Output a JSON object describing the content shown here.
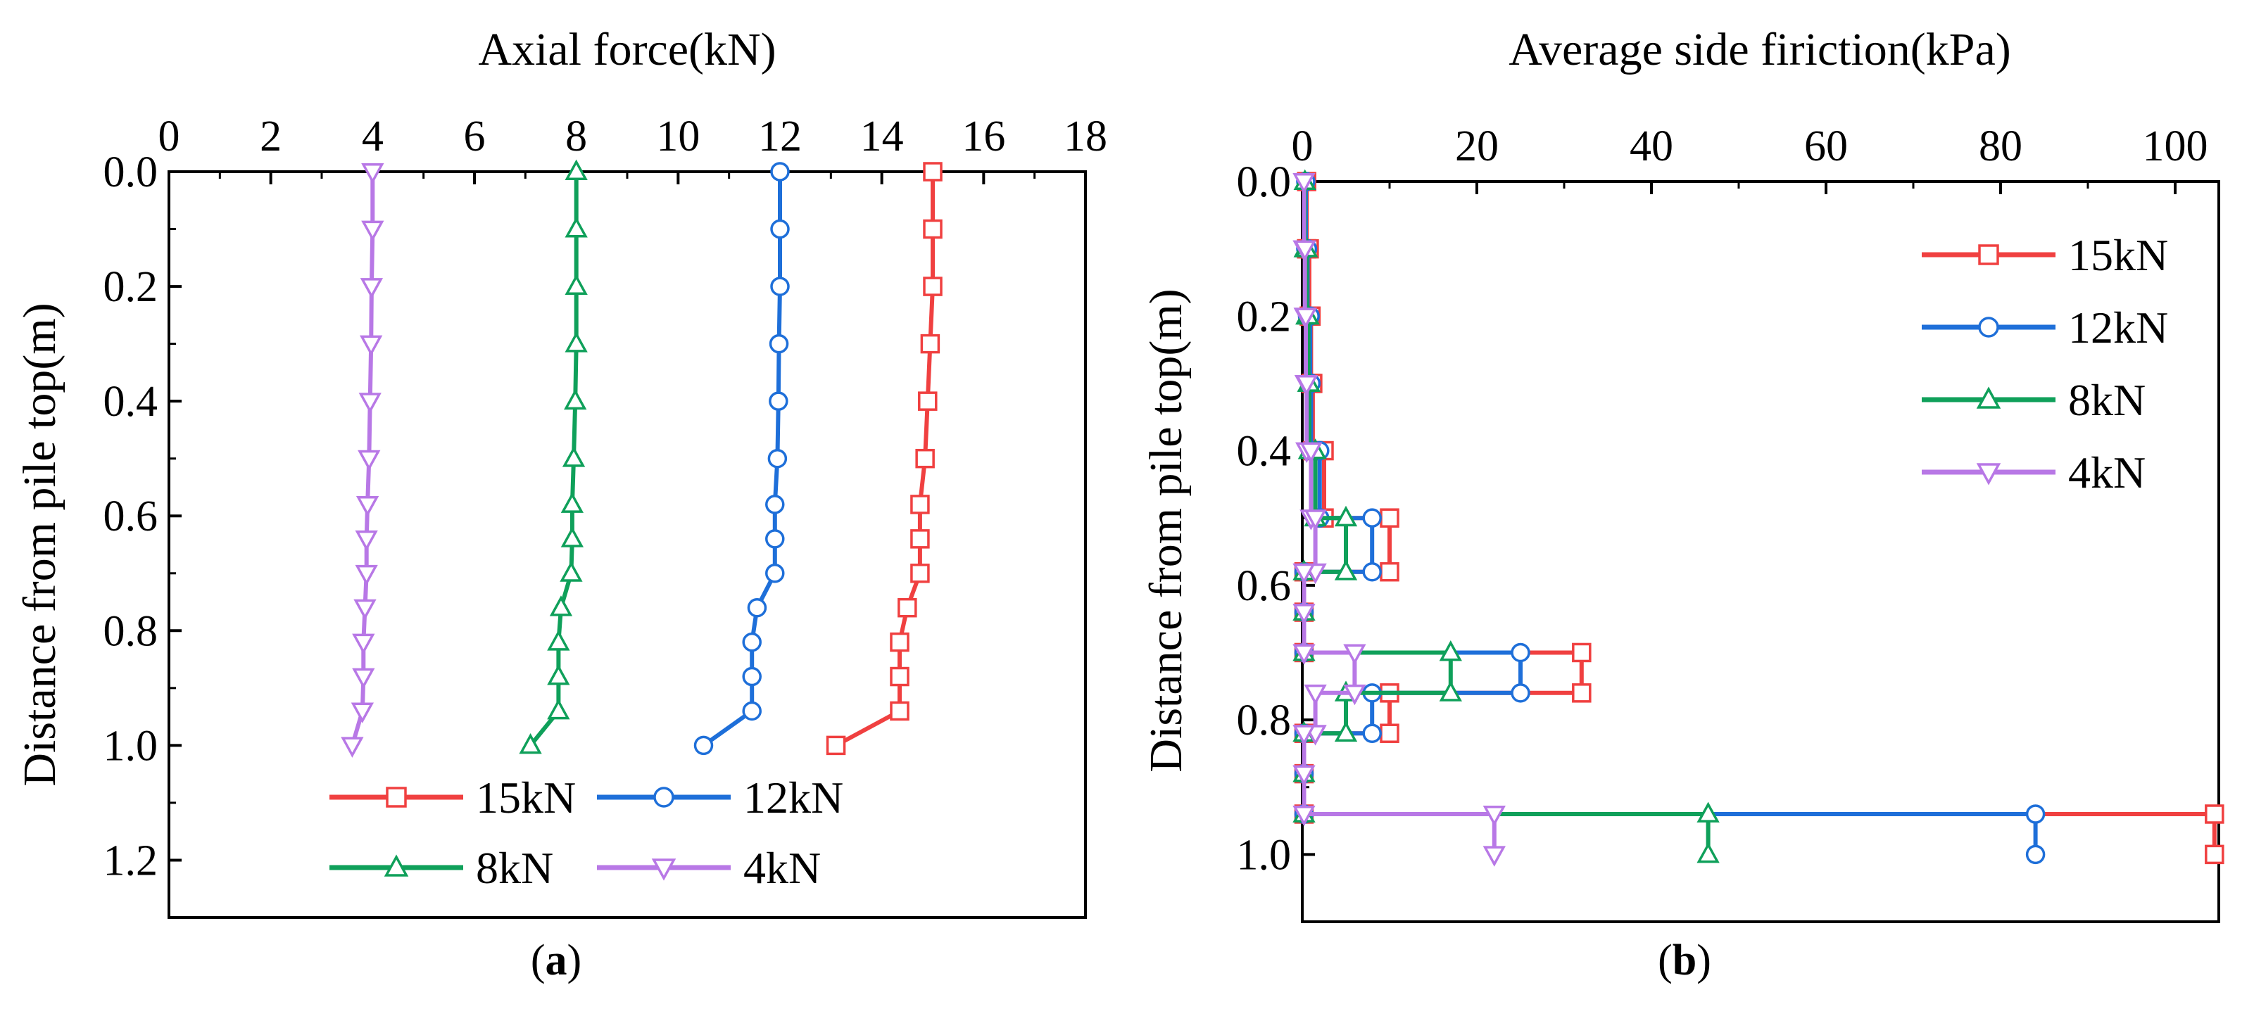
{
  "colors": {
    "15kN": "#f04040",
    "12kN": "#1e6fd9",
    "8kN": "#0fa05a",
    "4kN": "#b878e6"
  },
  "panels": {
    "a": {
      "label_open": "(",
      "label_letter": "a",
      "label_close": ")"
    },
    "b": {
      "label_open": "(",
      "label_letter": "b",
      "label_close": ")"
    }
  },
  "chart_data": [
    {
      "type": "line",
      "xlabel": "Axial force(kN)",
      "ylabel": "Distance from pile top(m)",
      "xlim": [
        0,
        18
      ],
      "ylim": [
        0,
        1.3
      ],
      "y_inverted": true,
      "x_axis_position": "top",
      "x_ticks": [
        0,
        2,
        4,
        6,
        8,
        10,
        12,
        14,
        16,
        18
      ],
      "x_tick_labels": [
        "0",
        "2",
        "4",
        "6",
        "8",
        "10",
        "12",
        "14",
        "16",
        "18"
      ],
      "y_ticks": [
        0,
        0.2,
        0.4,
        0.6,
        0.8,
        1.0,
        1.2
      ],
      "y_tick_labels": [
        "0.0",
        "0.2",
        "0.4",
        "0.6",
        "0.8",
        "1.0",
        "1.2"
      ],
      "grid": false,
      "legend_position": "bottom-center",
      "series": [
        {
          "name": "15kN",
          "marker": "square",
          "points": [
            [
              15.0,
              0.0
            ],
            [
              15.0,
              0.1
            ],
            [
              15.0,
              0.2
            ],
            [
              14.95,
              0.3
            ],
            [
              14.9,
              0.4
            ],
            [
              14.85,
              0.5
            ],
            [
              14.75,
              0.58
            ],
            [
              14.75,
              0.64
            ],
            [
              14.75,
              0.7
            ],
            [
              14.5,
              0.76
            ],
            [
              14.35,
              0.82
            ],
            [
              14.35,
              0.88
            ],
            [
              14.35,
              0.94
            ],
            [
              13.1,
              1.0
            ]
          ]
        },
        {
          "name": "12kN",
          "marker": "circle",
          "points": [
            [
              12.0,
              0.0
            ],
            [
              12.0,
              0.1
            ],
            [
              12.0,
              0.2
            ],
            [
              11.98,
              0.3
            ],
            [
              11.97,
              0.4
            ],
            [
              11.95,
              0.5
            ],
            [
              11.9,
              0.58
            ],
            [
              11.9,
              0.64
            ],
            [
              11.9,
              0.7
            ],
            [
              11.55,
              0.76
            ],
            [
              11.45,
              0.82
            ],
            [
              11.45,
              0.88
            ],
            [
              11.45,
              0.94
            ],
            [
              10.5,
              1.0
            ]
          ]
        },
        {
          "name": "8kN",
          "marker": "triangle-up",
          "points": [
            [
              8.0,
              0.0
            ],
            [
              8.0,
              0.1
            ],
            [
              8.0,
              0.2
            ],
            [
              8.0,
              0.3
            ],
            [
              7.98,
              0.4
            ],
            [
              7.95,
              0.5
            ],
            [
              7.92,
              0.58
            ],
            [
              7.92,
              0.64
            ],
            [
              7.9,
              0.7
            ],
            [
              7.7,
              0.76
            ],
            [
              7.65,
              0.82
            ],
            [
              7.65,
              0.88
            ],
            [
              7.65,
              0.94
            ],
            [
              7.1,
              1.0
            ]
          ]
        },
        {
          "name": "4kN",
          "marker": "triangle-down",
          "points": [
            [
              4.0,
              0.0
            ],
            [
              4.0,
              0.1
            ],
            [
              3.98,
              0.2
            ],
            [
              3.97,
              0.3
            ],
            [
              3.95,
              0.4
            ],
            [
              3.93,
              0.5
            ],
            [
              3.9,
              0.58
            ],
            [
              3.88,
              0.64
            ],
            [
              3.88,
              0.7
            ],
            [
              3.85,
              0.76
            ],
            [
              3.82,
              0.82
            ],
            [
              3.82,
              0.88
            ],
            [
              3.8,
              0.94
            ],
            [
              3.6,
              1.0
            ]
          ]
        }
      ]
    },
    {
      "type": "line",
      "xlabel": "Average side firiction(kPa)",
      "ylabel": "Distance from pile top(m)",
      "xlim": [
        0,
        105
      ],
      "ylim": [
        0,
        1.1
      ],
      "y_inverted": true,
      "x_axis_position": "top",
      "x_ticks": [
        0,
        20,
        40,
        60,
        80,
        100
      ],
      "x_tick_labels": [
        "0",
        "20",
        "40",
        "60",
        "80",
        "100"
      ],
      "y_ticks": [
        0,
        0.2,
        0.4,
        0.6,
        0.8,
        1.0
      ],
      "y_tick_labels": [
        "0.0",
        "0.2",
        "0.4",
        "0.6",
        "0.8",
        "1.0"
      ],
      "grid": false,
      "legend_position": "top-right",
      "series": [
        {
          "name": "15kN",
          "marker": "square",
          "points": [
            [
              0.5,
              0.0
            ],
            [
              0.5,
              0.1
            ],
            [
              0.5,
              0.1
            ],
            [
              0.8,
              0.1
            ],
            [
              0.8,
              0.2
            ],
            [
              1.0,
              0.2
            ],
            [
              1.0,
              0.3
            ],
            [
              1.2,
              0.3
            ],
            [
              1.2,
              0.4
            ],
            [
              2.5,
              0.4
            ],
            [
              2.5,
              0.5
            ],
            [
              10.0,
              0.5
            ],
            [
              10.0,
              0.58
            ],
            [
              0.2,
              0.58
            ],
            [
              0.2,
              0.64
            ],
            [
              0.2,
              0.7
            ],
            [
              32.0,
              0.7
            ],
            [
              32.0,
              0.76
            ],
            [
              10.0,
              0.76
            ],
            [
              10.0,
              0.82
            ],
            [
              0.2,
              0.82
            ],
            [
              0.2,
              0.88
            ],
            [
              0.2,
              0.94
            ],
            [
              104.5,
              0.94
            ],
            [
              104.5,
              1.0
            ]
          ]
        },
        {
          "name": "12kN",
          "marker": "circle",
          "points": [
            [
              0.4,
              0.0
            ],
            [
              0.4,
              0.1
            ],
            [
              0.6,
              0.1
            ],
            [
              0.6,
              0.2
            ],
            [
              0.9,
              0.2
            ],
            [
              0.9,
              0.3
            ],
            [
              1.0,
              0.3
            ],
            [
              1.0,
              0.4
            ],
            [
              2.0,
              0.4
            ],
            [
              2.0,
              0.5
            ],
            [
              8.0,
              0.5
            ],
            [
              8.0,
              0.58
            ],
            [
              0.2,
              0.58
            ],
            [
              0.2,
              0.64
            ],
            [
              0.2,
              0.7
            ],
            [
              25.0,
              0.7
            ],
            [
              25.0,
              0.76
            ],
            [
              8.0,
              0.76
            ],
            [
              8.0,
              0.82
            ],
            [
              0.2,
              0.82
            ],
            [
              0.2,
              0.88
            ],
            [
              0.2,
              0.94
            ],
            [
              84.0,
              0.94
            ],
            [
              84.0,
              1.0
            ]
          ]
        },
        {
          "name": "8kN",
          "marker": "triangle-up",
          "points": [
            [
              0.3,
              0.0
            ],
            [
              0.3,
              0.1
            ],
            [
              0.5,
              0.1
            ],
            [
              0.5,
              0.2
            ],
            [
              0.7,
              0.2
            ],
            [
              0.7,
              0.3
            ],
            [
              0.8,
              0.3
            ],
            [
              0.8,
              0.4
            ],
            [
              1.5,
              0.4
            ],
            [
              1.5,
              0.5
            ],
            [
              5.0,
              0.5
            ],
            [
              5.0,
              0.58
            ],
            [
              0.2,
              0.58
            ],
            [
              0.2,
              0.64
            ],
            [
              0.2,
              0.7
            ],
            [
              17.0,
              0.7
            ],
            [
              17.0,
              0.76
            ],
            [
              5.0,
              0.76
            ],
            [
              5.0,
              0.82
            ],
            [
              0.2,
              0.82
            ],
            [
              0.2,
              0.88
            ],
            [
              0.2,
              0.94
            ],
            [
              46.5,
              0.94
            ],
            [
              46.5,
              1.0
            ]
          ]
        },
        {
          "name": "4kN",
          "marker": "triangle-down",
          "points": [
            [
              0.2,
              0.0
            ],
            [
              0.2,
              0.1
            ],
            [
              0.3,
              0.1
            ],
            [
              0.3,
              0.2
            ],
            [
              0.4,
              0.2
            ],
            [
              0.4,
              0.3
            ],
            [
              0.5,
              0.3
            ],
            [
              0.5,
              0.4
            ],
            [
              1.0,
              0.4
            ],
            [
              1.0,
              0.5
            ],
            [
              1.5,
              0.5
            ],
            [
              1.5,
              0.58
            ],
            [
              0.2,
              0.58
            ],
            [
              0.2,
              0.64
            ],
            [
              0.2,
              0.7
            ],
            [
              6.0,
              0.7
            ],
            [
              6.0,
              0.76
            ],
            [
              1.5,
              0.76
            ],
            [
              1.5,
              0.82
            ],
            [
              0.2,
              0.82
            ],
            [
              0.2,
              0.88
            ],
            [
              0.2,
              0.94
            ],
            [
              22.0,
              0.94
            ],
            [
              22.0,
              1.0
            ]
          ]
        }
      ]
    }
  ]
}
